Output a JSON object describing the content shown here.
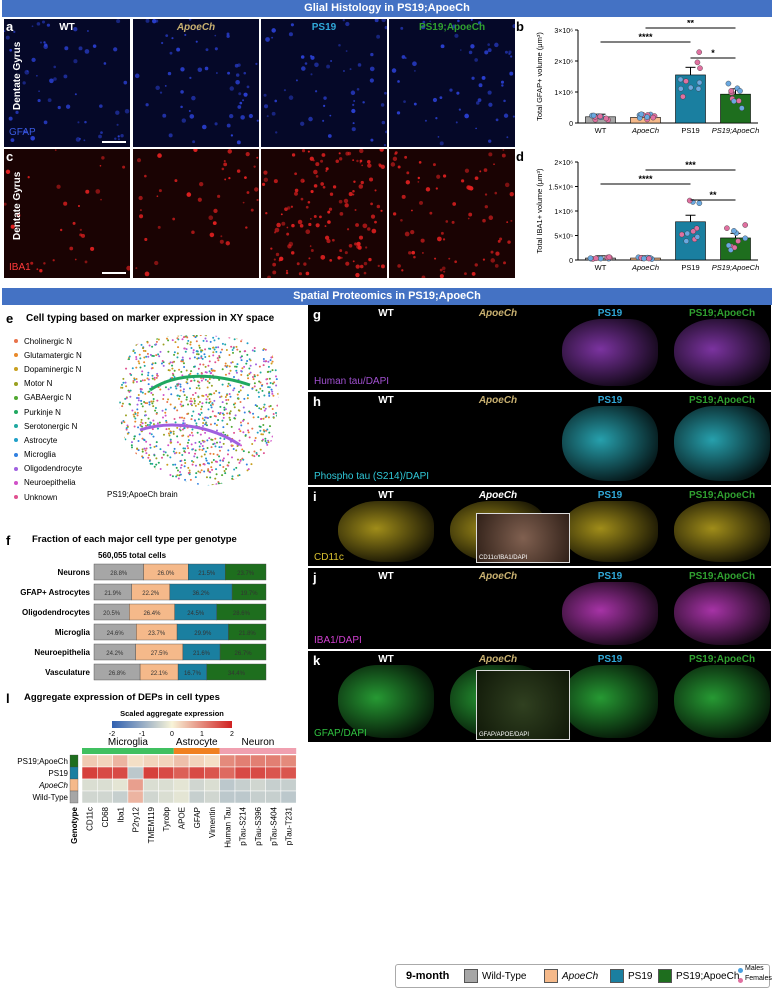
{
  "banner_top": "Glial Histology in PS19;ApoeCh",
  "banner_mid": "Spatial Proteomics in PS19;ApoeCh",
  "genotypes": [
    "WT",
    "ApoeCh",
    "PS19",
    "PS19;ApoeCh"
  ],
  "panel_letters": {
    "a": "a",
    "b": "b",
    "c": "c",
    "d": "d",
    "e": "e",
    "f": "f",
    "g": "g",
    "h": "h",
    "i": "i",
    "j": "j",
    "k": "k",
    "l": "l"
  },
  "histology": {
    "row_label": "Dentate Gyrus",
    "stain_a": "GFAP",
    "stain_c": "IBA1"
  },
  "colors": {
    "wt": "#a6a6a6",
    "apoech": "#f5b98a",
    "ps19": "#1a7fa0",
    "ps19apoech": "#1e6e1e",
    "gfap": "#2a3fd0",
    "iba1": "#e02020",
    "tau": "#9a40c8",
    "ptau": "#30c8d8",
    "cd11c": "#c8b020",
    "iba1_magenta": "#d040d0",
    "gfap_green": "#30c040"
  },
  "panel_b": {
    "ylabel": "Total GFAP+ volume (μm³)",
    "yticks": [
      "0",
      "1×10⁶",
      "2×10⁶",
      "3×10⁶"
    ],
    "categories": [
      "WT",
      "ApoeCh",
      "PS19",
      "PS19;ApoeCh"
    ],
    "sig": [
      "****",
      "**",
      "*"
    ]
  },
  "panel_d": {
    "ylabel": "Total IBA1+ volume (μm³)",
    "yticks": [
      "0",
      "5×10⁵",
      "1×10⁶",
      "1.5×10⁶",
      "2×10⁶"
    ],
    "categories": [
      "WT",
      "ApoeCh",
      "PS19",
      "PS19;ApoeCh"
    ],
    "sig": [
      "****",
      "***",
      "**"
    ]
  },
  "panel_e": {
    "title": "Cell typing based on marker expression in XY space",
    "caption": "PS19;ApoeCh brain",
    "cell_types": [
      {
        "name": "Cholinergic N",
        "color": "#e8734a"
      },
      {
        "name": "Glutamatergic N",
        "color": "#e8892a"
      },
      {
        "name": "Dopaminergic N",
        "color": "#c8a020"
      },
      {
        "name": "Motor N",
        "color": "#9aa020"
      },
      {
        "name": "GABAergic N",
        "color": "#50a830"
      },
      {
        "name": "Purkinje N",
        "color": "#20a860"
      },
      {
        "name": "Serotonergic N",
        "color": "#20a8a0"
      },
      {
        "name": "Astrocyte",
        "color": "#20a0c8"
      },
      {
        "name": "Microglia",
        "color": "#3080e0"
      },
      {
        "name": "Oligodendrocyte",
        "color": "#a060e0"
      },
      {
        "name": "Neuroepithelia",
        "color": "#d050c8"
      },
      {
        "name": "Unknown",
        "color": "#e05090"
      }
    ]
  },
  "chart_data": [
    {
      "type": "bar",
      "panel": "b",
      "ylabel": "Total GFAP+ volume (μm³)",
      "categories": [
        "WT",
        "ApoeCh",
        "PS19",
        "PS19;ApoeCh"
      ],
      "values": [
        200000,
        180000,
        1550000,
        930000
      ],
      "ylim": [
        0,
        3000000
      ]
    },
    {
      "type": "bar",
      "panel": "d",
      "ylabel": "Total IBA1+ volume (μm³)",
      "categories": [
        "WT",
        "ApoeCh",
        "PS19",
        "PS19;ApoeCh"
      ],
      "values": [
        40000,
        40000,
        780000,
        450000
      ],
      "ylim": [
        0,
        2000000
      ]
    },
    {
      "type": "bar",
      "panel": "f",
      "stacked": true,
      "horizontal": true,
      "title": "Fraction of each major cell type per genotype",
      "subtitle": "560,055 total cells",
      "categories": [
        "Neurons",
        "GFAP+ Astrocytes",
        "Oligodendrocytes",
        "Microglia",
        "Neuroepithelia",
        "Vasculature"
      ],
      "series": [
        {
          "name": "Wild-Type",
          "values": [
            28.8,
            21.9,
            20.5,
            24.6,
            24.2,
            26.8
          ]
        },
        {
          "name": "ApoeCh",
          "values": [
            26.0,
            22.2,
            26.4,
            23.7,
            27.5,
            22.1
          ]
        },
        {
          "name": "PS19",
          "values": [
            21.5,
            36.2,
            24.5,
            29.9,
            21.6,
            16.7
          ]
        },
        {
          "name": "PS19;ApoeCh",
          "values": [
            23.7,
            19.7,
            28.6,
            21.8,
            26.7,
            34.4
          ]
        }
      ],
      "xticks": [
        "0.00",
        "0.25",
        "0.50",
        "0.75",
        "1.00"
      ]
    },
    {
      "type": "heatmap",
      "panel": "l",
      "title": "Aggregate expression of DEPs in cell types",
      "scale_label": "Scaled aggregate expression",
      "scale_ticks": [
        "-2",
        "-1",
        "0",
        "1",
        "2"
      ],
      "groups": [
        "Microglia",
        "Astrocyte",
        "Neuron"
      ],
      "columns": [
        "CD11c",
        "CD68",
        "Iba1",
        "P2ry12",
        "TMEM119",
        "Tyrobp",
        "APOE",
        "GFAP",
        "Vimentin",
        "Human Tau",
        "pTau-S214",
        "pTau-S396",
        "pTau-S404",
        "pTau-T231"
      ],
      "rows": [
        "PS19;ApoeCh",
        "PS19",
        "ApoeCh",
        "Wild-Type"
      ],
      "row_header": "Genotype",
      "values": [
        [
          0.4,
          0.3,
          0.6,
          0.2,
          0.3,
          0.3,
          0.5,
          0.3,
          0.2,
          1.0,
          1.1,
          1.1,
          1.1,
          1.0
        ],
        [
          1.7,
          1.6,
          1.6,
          -0.6,
          1.7,
          1.6,
          1.4,
          1.6,
          1.5,
          1.3,
          1.6,
          1.6,
          1.5,
          1.5
        ],
        [
          -0.3,
          -0.3,
          -0.2,
          0.8,
          -0.3,
          -0.3,
          -0.2,
          -0.4,
          -0.3,
          -0.6,
          -0.5,
          -0.4,
          -0.5,
          -0.5
        ],
        [
          -0.4,
          -0.4,
          -0.5,
          0.6,
          -0.4,
          -0.3,
          -0.2,
          -0.5,
          -0.4,
          -0.6,
          -0.6,
          -0.5,
          -0.5,
          -0.6
        ]
      ]
    }
  ],
  "spatial": {
    "stain_g": "Human tau/DAPI",
    "stain_h": "Phospho tau (S214)/DAPI",
    "stain_i": "CD11c",
    "stain_j": "IBA1/DAPI",
    "stain_k": "GFAP/DAPI",
    "inset_i": "CD11c/IBA1/DAPI",
    "inset_k": "GFAP/APOE/DAPI"
  },
  "legend": {
    "age": "9-month",
    "items": [
      "Wild-Type",
      "ApoeCh",
      "PS19",
      "PS19;ApoeCh"
    ],
    "sex": [
      "Males",
      "Females"
    ]
  }
}
